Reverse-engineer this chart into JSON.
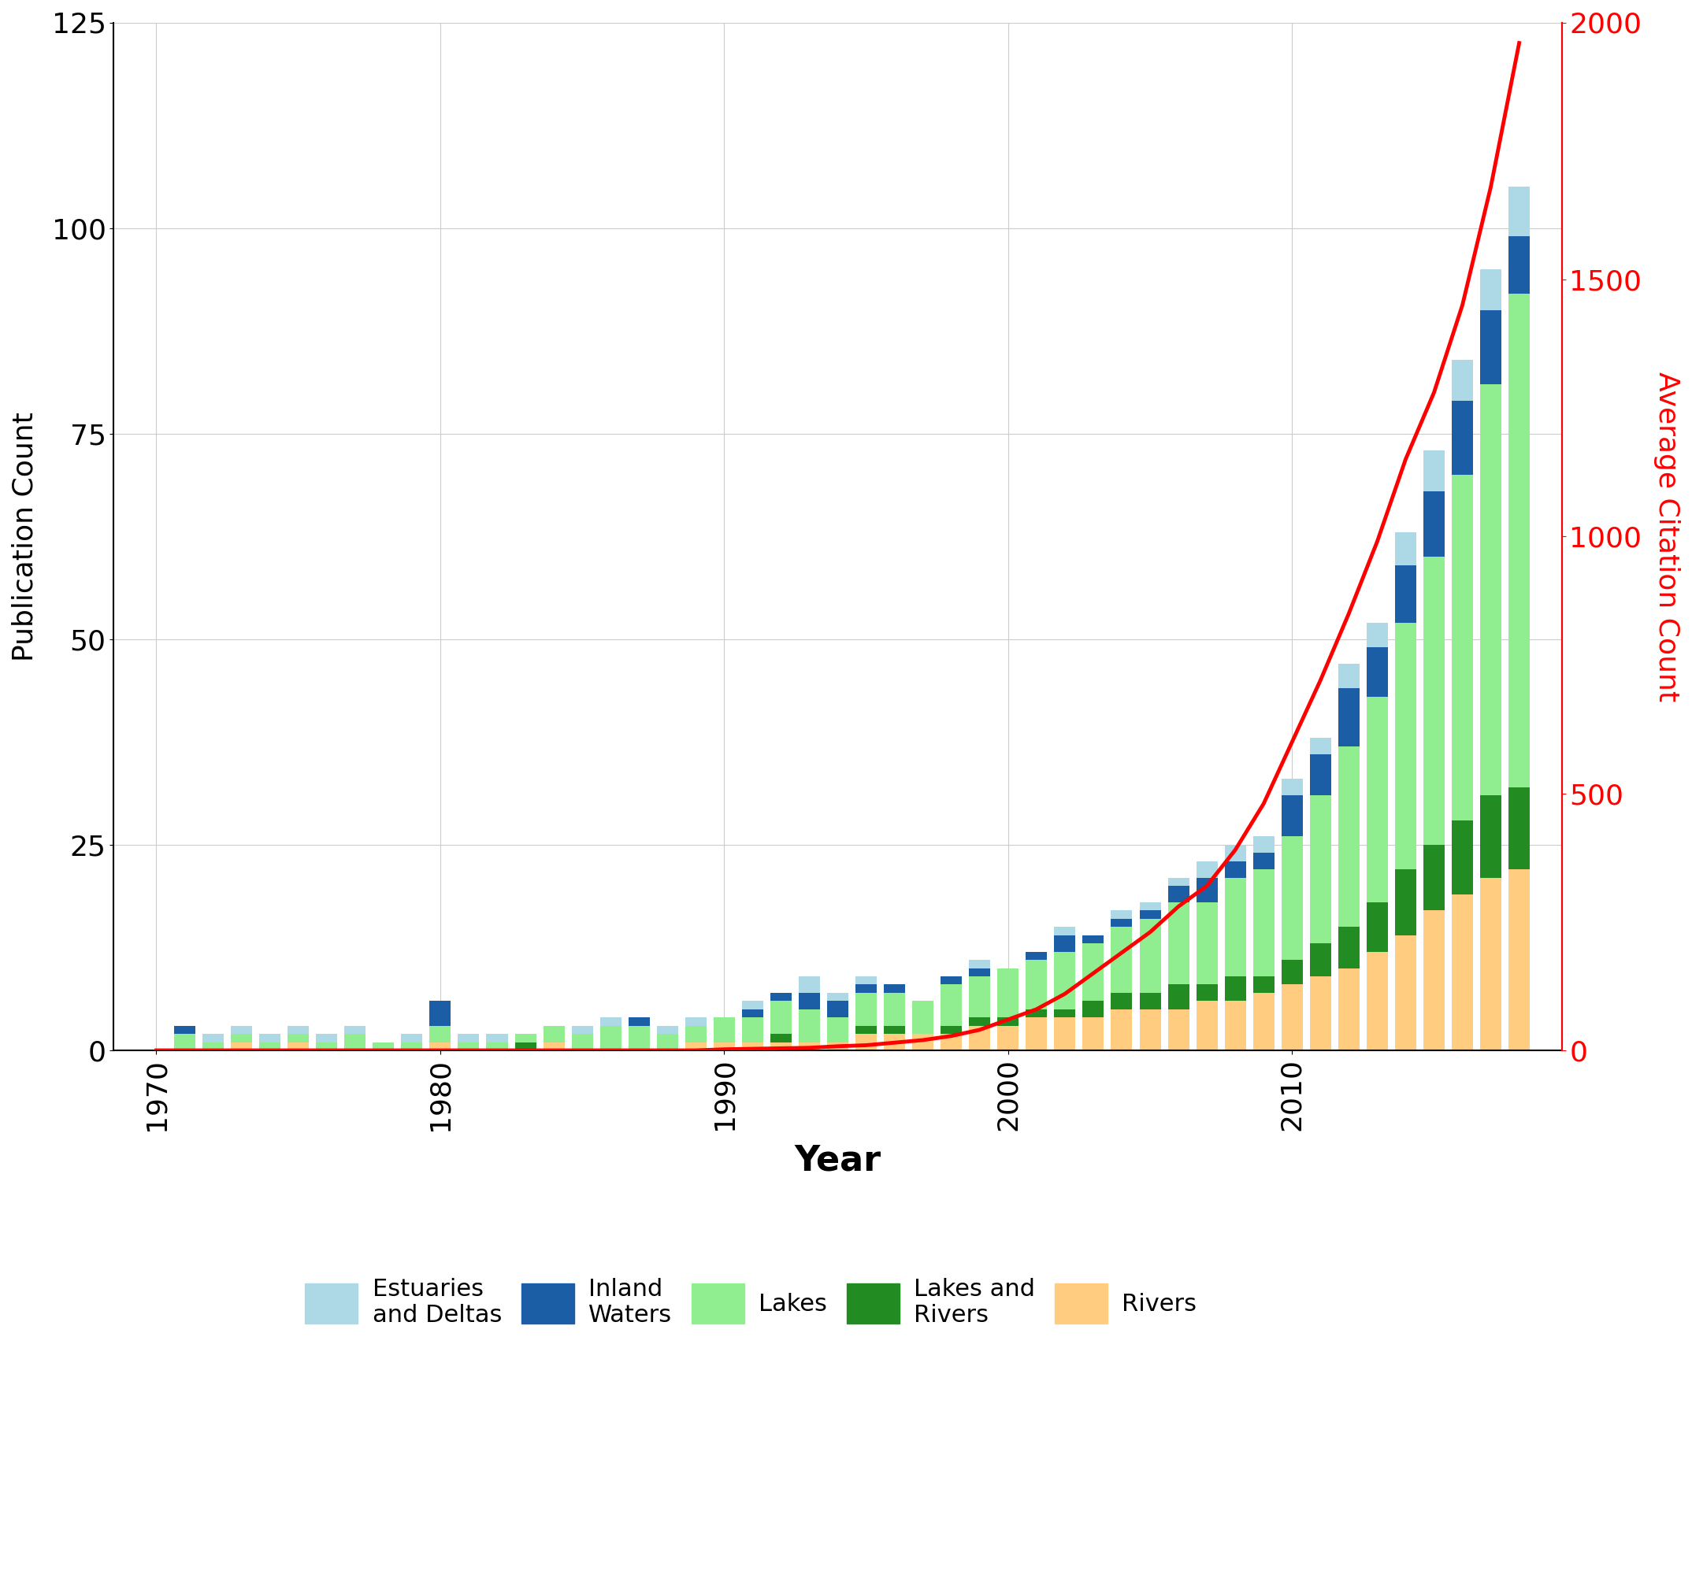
{
  "years": [
    1970,
    1971,
    1972,
    1973,
    1974,
    1975,
    1976,
    1977,
    1978,
    1979,
    1980,
    1981,
    1982,
    1983,
    1984,
    1985,
    1986,
    1987,
    1988,
    1989,
    1990,
    1991,
    1992,
    1993,
    1994,
    1995,
    1996,
    1997,
    1998,
    1999,
    2000,
    2001,
    2002,
    2003,
    2004,
    2005,
    2006,
    2007,
    2008,
    2009,
    2010,
    2011,
    2012,
    2013,
    2014,
    2015,
    2016,
    2017,
    2018
  ],
  "estuaries": [
    0,
    0,
    1,
    1,
    1,
    1,
    1,
    1,
    0,
    1,
    0,
    1,
    1,
    0,
    0,
    1,
    1,
    0,
    1,
    1,
    0,
    1,
    0,
    2,
    1,
    1,
    0,
    0,
    0,
    1,
    0,
    0,
    1,
    0,
    1,
    1,
    1,
    2,
    2,
    2,
    2,
    2,
    3,
    3,
    4,
    5,
    5,
    5,
    6
  ],
  "inland_waters": [
    0,
    1,
    0,
    0,
    0,
    0,
    0,
    0,
    0,
    0,
    3,
    0,
    0,
    0,
    0,
    0,
    0,
    1,
    0,
    0,
    0,
    1,
    1,
    2,
    2,
    1,
    1,
    0,
    1,
    1,
    0,
    1,
    2,
    1,
    1,
    1,
    2,
    3,
    2,
    2,
    5,
    5,
    7,
    6,
    7,
    8,
    9,
    9,
    7
  ],
  "lakes": [
    0,
    2,
    1,
    1,
    1,
    1,
    1,
    2,
    1,
    1,
    2,
    1,
    1,
    1,
    2,
    2,
    3,
    3,
    2,
    2,
    3,
    3,
    4,
    4,
    3,
    4,
    4,
    4,
    5,
    5,
    6,
    6,
    7,
    7,
    8,
    9,
    10,
    10,
    12,
    13,
    15,
    18,
    22,
    25,
    30,
    35,
    42,
    50,
    60
  ],
  "lakes_rivers": [
    0,
    0,
    0,
    0,
    0,
    0,
    0,
    0,
    0,
    0,
    0,
    0,
    0,
    1,
    0,
    0,
    0,
    0,
    0,
    0,
    0,
    0,
    1,
    0,
    0,
    1,
    1,
    0,
    1,
    1,
    1,
    1,
    1,
    2,
    2,
    2,
    3,
    2,
    3,
    2,
    3,
    4,
    5,
    6,
    8,
    8,
    9,
    10,
    10
  ],
  "rivers": [
    0,
    0,
    0,
    1,
    0,
    1,
    0,
    0,
    0,
    0,
    1,
    0,
    0,
    0,
    1,
    0,
    0,
    0,
    0,
    1,
    1,
    1,
    1,
    1,
    1,
    2,
    2,
    2,
    2,
    3,
    3,
    4,
    4,
    4,
    5,
    5,
    5,
    6,
    6,
    7,
    8,
    9,
    10,
    12,
    14,
    17,
    19,
    21,
    22
  ],
  "citation": [
    0,
    0,
    0,
    0,
    0,
    0,
    0,
    0,
    0,
    0,
    0,
    0,
    0,
    0,
    0,
    0,
    0,
    0,
    0,
    0,
    2,
    3,
    4,
    5,
    8,
    10,
    15,
    20,
    28,
    40,
    60,
    80,
    110,
    150,
    190,
    230,
    280,
    320,
    390,
    480,
    600,
    720,
    850,
    990,
    1150,
    1280,
    1450,
    1680,
    1960
  ],
  "colors": {
    "estuaries": "#ADD8E6",
    "inland_waters": "#1B5EA6",
    "lakes": "#90EE90",
    "lakes_rivers": "#228B22",
    "rivers": "#FFCC80"
  },
  "ylabel_left": "Publication Count",
  "ylabel_right": "Average Citation Count",
  "xlabel": "Year",
  "ylim_left": [
    0,
    125
  ],
  "ylim_right": [
    0,
    2000
  ],
  "yticks_left": [
    0,
    25,
    50,
    75,
    100,
    125
  ],
  "yticks_right": [
    0,
    500,
    1000,
    1500,
    2000
  ],
  "xticks": [
    1970,
    1980,
    1990,
    2000,
    2010
  ],
  "bar_width": 0.75,
  "citation_color": "#FF0000",
  "bg_color": "#FFFFFF",
  "grid_color": "#CCCCCC"
}
